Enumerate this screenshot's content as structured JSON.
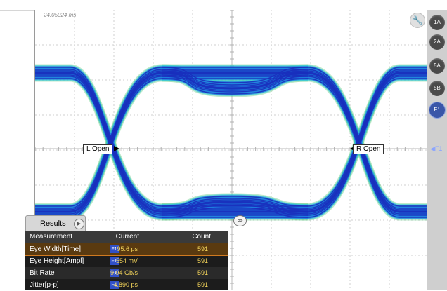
{
  "scope": {
    "timestamp": "24.05024 ms",
    "left_marker": "L Open",
    "right_marker": "R Open",
    "reference_marker": "◀F1",
    "wrench_icon": "wrench-icon"
  },
  "channels": [
    {
      "label": "1A",
      "style": "dark"
    },
    {
      "label": "2A",
      "style": "dark"
    },
    {
      "label": "5A",
      "style": "dark"
    },
    {
      "label": "5B",
      "style": "dark"
    },
    {
      "label": "F1",
      "style": "blue"
    }
  ],
  "results": {
    "tab_label": "Results",
    "play_icon": "▶",
    "collapse_icon": "≫",
    "headers": {
      "measurement": "Measurement",
      "current": "Current",
      "count": "Count"
    },
    "rows": [
      {
        "name": "Eye Width[Time]",
        "source": "F1",
        "current": "95.6 ps",
        "count": "591"
      },
      {
        "name": "Eye Height[Ampl]",
        "source": "F1",
        "current": "554 mV",
        "count": "591"
      },
      {
        "name": "Bit Rate",
        "source": "F1",
        "current": "9.94 Gb/s",
        "count": "591"
      },
      {
        "name": "Jitter[p-p]",
        "source": "F1",
        "current": "4.890 ps",
        "count": "591"
      }
    ]
  },
  "colors": {
    "trace_core": "#1a2fbd",
    "trace_mid": "#1e7be0",
    "trace_edge": "#35c8d8",
    "trace_outer": "#3ec06a",
    "results_value": "#f2d35a",
    "selection_border": "#d07a20"
  }
}
